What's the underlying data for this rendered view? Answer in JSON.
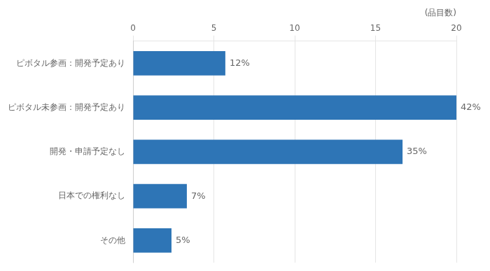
{
  "chart_data": {
    "type": "bar",
    "orientation": "horizontal",
    "categories": [
      "ピボタル参画：開発予定あり",
      "ピボタル未参画：開発予定あり",
      "開発・申請予定なし",
      "日本での権利なし",
      "その他"
    ],
    "values": [
      5.71,
      20.0,
      16.67,
      3.33,
      2.38
    ],
    "value_labels": [
      "12%",
      "42%",
      "35%",
      "7%",
      "5%"
    ],
    "data_labels": true,
    "color": "#2E75B6",
    "xlabel": "(品目数)",
    "xlim": [
      0,
      20
    ],
    "xticks": [
      0,
      5,
      10,
      15,
      20
    ],
    "grid": "x"
  }
}
